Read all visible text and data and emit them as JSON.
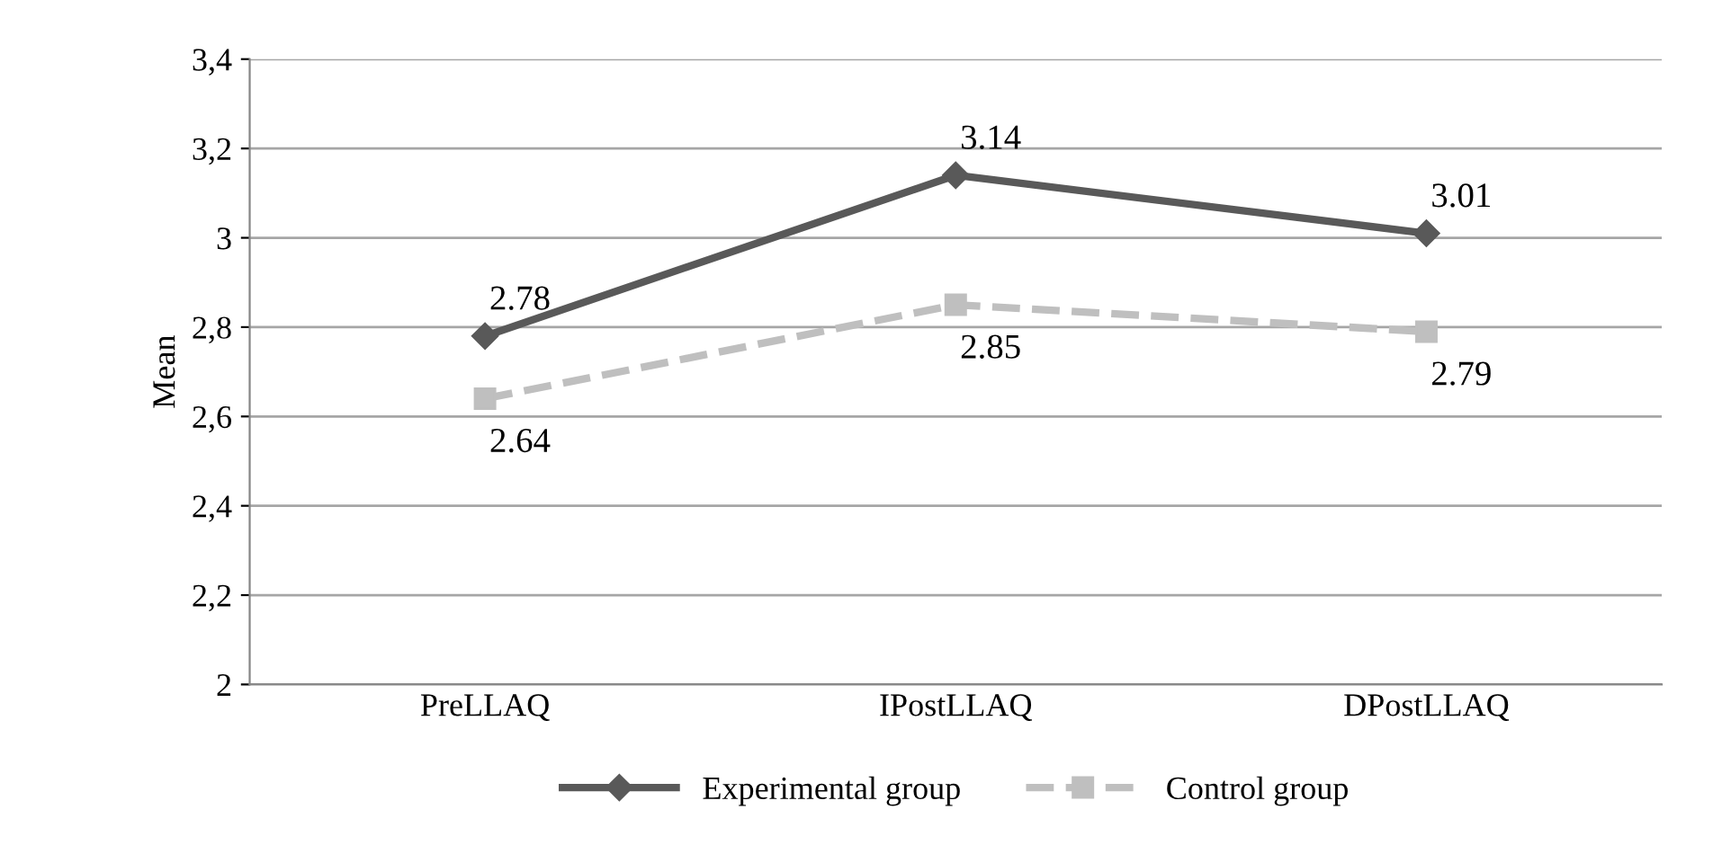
{
  "chart_data": {
    "type": "line",
    "ylabel": "Mean",
    "categories": [
      "PreLLAQ",
      "IPostLLAQ",
      "DPostLLAQ"
    ],
    "series": [
      {
        "name": "Experimental group",
        "color": "#595959",
        "values": [
          2.78,
          3.14,
          3.01
        ],
        "marker": "diamond",
        "line_style": "solid"
      },
      {
        "name": "Control group",
        "color": "#bfbfbf",
        "values": [
          2.64,
          2.85,
          2.79
        ],
        "marker": "square",
        "line_style": "dashed"
      }
    ],
    "ylim": [
      2,
      3.4
    ],
    "yticks": [
      2,
      {
        "value": 2.2,
        "label": "2,2"
      },
      {
        "value": 2.4,
        "label": "2,4"
      },
      {
        "value": 2.6,
        "label": "2,6"
      },
      {
        "value": 2.8,
        "label": "2,8"
      },
      3,
      {
        "value": 3.2,
        "label": "3,2"
      },
      {
        "value": 3.4,
        "label": "3,4"
      }
    ],
    "grid": "y",
    "legend": "bottom",
    "data_labels": true
  }
}
